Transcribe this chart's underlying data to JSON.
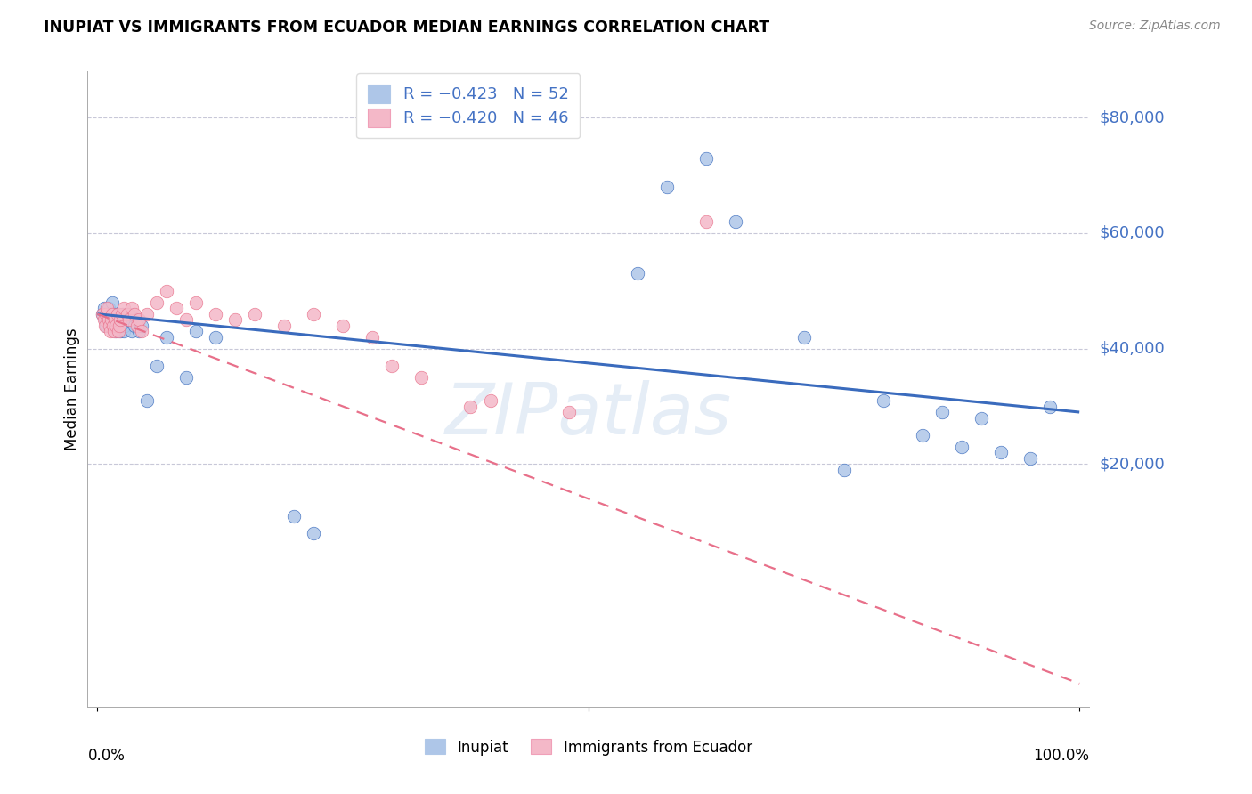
{
  "title": "INUPIAT VS IMMIGRANTS FROM ECUADOR MEDIAN EARNINGS CORRELATION CHART",
  "source": "Source: ZipAtlas.com",
  "ylabel": "Median Earnings",
  "legend_entry1": "R = −0.423   N = 52",
  "legend_entry2": "R = −0.420   N = 46",
  "legend_label1": "Inupiat",
  "legend_label2": "Immigrants from Ecuador",
  "color_blue": "#aec6e8",
  "color_pink": "#f4b8c8",
  "color_blue_line": "#3a6bbd",
  "color_pink_line": "#e8708a",
  "color_text_blue": "#4472c4",
  "color_grid": "#c8c8d8",
  "watermark": "ZIPatlas",
  "inupiat_x": [
    0.005,
    0.007,
    0.008,
    0.009,
    0.01,
    0.011,
    0.012,
    0.013,
    0.014,
    0.015,
    0.016,
    0.017,
    0.018,
    0.019,
    0.02,
    0.021,
    0.022,
    0.023,
    0.024,
    0.025,
    0.026,
    0.027,
    0.028,
    0.03,
    0.032,
    0.035,
    0.038,
    0.04,
    0.042,
    0.045,
    0.05,
    0.06,
    0.07,
    0.09,
    0.1,
    0.12,
    0.2,
    0.22,
    0.55,
    0.58,
    0.62,
    0.65,
    0.72,
    0.76,
    0.8,
    0.84,
    0.86,
    0.88,
    0.9,
    0.92,
    0.95,
    0.97
  ],
  "inupiat_y": [
    46000,
    47000,
    45000,
    44000,
    46000,
    47000,
    45000,
    44000,
    46000,
    48000,
    44000,
    46000,
    45000,
    43000,
    44000,
    46000,
    45000,
    43000,
    44000,
    45000,
    46000,
    43000,
    44000,
    45000,
    46000,
    43000,
    44000,
    45000,
    43000,
    44000,
    31000,
    37000,
    42000,
    35000,
    43000,
    42000,
    11000,
    8000,
    53000,
    68000,
    73000,
    62000,
    42000,
    19000,
    31000,
    25000,
    29000,
    23000,
    28000,
    22000,
    21000,
    30000
  ],
  "ecuador_x": [
    0.005,
    0.007,
    0.008,
    0.009,
    0.01,
    0.011,
    0.012,
    0.013,
    0.014,
    0.015,
    0.016,
    0.017,
    0.018,
    0.019,
    0.02,
    0.021,
    0.022,
    0.023,
    0.025,
    0.027,
    0.03,
    0.032,
    0.035,
    0.038,
    0.04,
    0.042,
    0.045,
    0.05,
    0.06,
    0.07,
    0.08,
    0.09,
    0.1,
    0.12,
    0.14,
    0.16,
    0.19,
    0.22,
    0.25,
    0.28,
    0.3,
    0.33,
    0.38,
    0.4,
    0.48,
    0.62
  ],
  "ecuador_y": [
    46000,
    45000,
    44000,
    46000,
    47000,
    45000,
    44000,
    43000,
    45000,
    46000,
    44000,
    43000,
    45000,
    44000,
    46000,
    43000,
    44000,
    45000,
    46000,
    47000,
    46000,
    45000,
    47000,
    46000,
    44000,
    45000,
    43000,
    46000,
    48000,
    50000,
    47000,
    45000,
    48000,
    46000,
    45000,
    46000,
    44000,
    46000,
    44000,
    42000,
    37000,
    35000,
    30000,
    31000,
    29000,
    62000
  ],
  "ymin": -22000,
  "ymax": 88000,
  "xmin": -0.01,
  "xmax": 1.01,
  "blue_line_x": [
    0.0,
    1.0
  ],
  "blue_line_y": [
    46000,
    29000
  ],
  "pink_line_x": [
    0.0,
    1.0
  ],
  "pink_line_y": [
    46000,
    -18000
  ]
}
